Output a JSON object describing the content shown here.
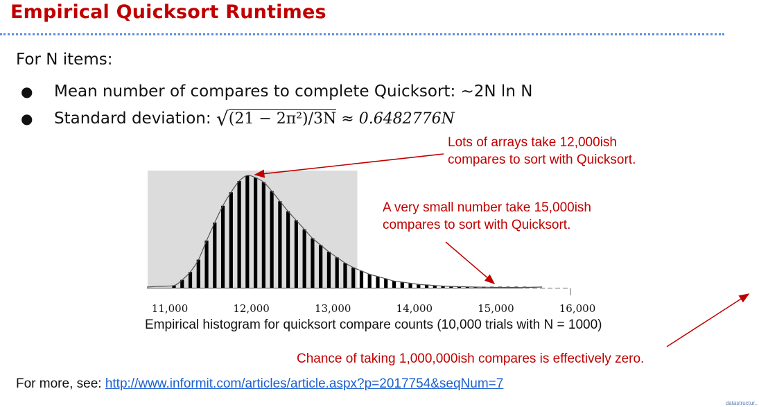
{
  "slide": {
    "title": "Empirical Quicksort Runtimes",
    "intro": "For N items:",
    "bullets": [
      "Mean number of compares to complete Quicksort: ~2N ln N",
      "Standard deviation: "
    ],
    "std_formula_radicand": "(21 − 2π²)/3N",
    "std_formula_approx": " ≈ 0.6482776N",
    "notes": {
      "n12000_line1": "Lots of arrays take 12,000ish",
      "n12000_line2": "compares to sort with Quicksort.",
      "n15000_line1": "A very small number take 15,000ish",
      "n15000_line2": "compares to sort with Quicksort.",
      "million": "Chance of taking 1,000,000ish compares is effectively zero."
    },
    "caption": "Empirical histogram for quicksort compare counts (10,000 trials with N = 1000)",
    "more_label": "For more, see: ",
    "more_url": "http://www.informit.com/articles/article.aspx?p=2017754&seqNum=7",
    "corner_brand": "datastructur..",
    "colors": {
      "title": "#c00000",
      "note": "#c00000",
      "link": "#1a5fd0",
      "rule": "#5b8ed6",
      "shade": "#dcdcdc"
    }
  },
  "chart_data": {
    "type": "bar",
    "title": "",
    "xlabel": "",
    "ylabel": "",
    "x_ticks": [
      "11,000",
      "12,000",
      "13,000",
      "14,000",
      "15,000",
      "16,000"
    ],
    "xlim": [
      10800,
      16300
    ],
    "bin_width": 100,
    "bins_x": [
      11000,
      11100,
      11200,
      11300,
      11400,
      11500,
      11600,
      11700,
      11800,
      11900,
      12000,
      12100,
      12200,
      12300,
      12400,
      12500,
      12600,
      12700,
      12800,
      12900,
      13000,
      13100,
      13200,
      13300,
      13400,
      13500,
      13600,
      13700,
      13800,
      13900,
      14000,
      14100,
      14200,
      14300,
      14400,
      14500,
      14600,
      14700,
      14800,
      14900,
      15000,
      15100,
      15200,
      15300
    ],
    "relative_frequency": [
      0.02,
      0.07,
      0.14,
      0.25,
      0.42,
      0.58,
      0.73,
      0.85,
      0.95,
      1.0,
      0.98,
      0.94,
      0.86,
      0.77,
      0.68,
      0.6,
      0.52,
      0.44,
      0.38,
      0.32,
      0.27,
      0.22,
      0.18,
      0.15,
      0.12,
      0.1,
      0.08,
      0.06,
      0.05,
      0.04,
      0.03,
      0.025,
      0.02,
      0.015,
      0.012,
      0.01,
      0.008,
      0.006,
      0.005,
      0.004,
      0.003,
      0.003,
      0.002,
      0.002
    ],
    "shaded_range": [
      11000,
      13300
    ],
    "grid": false,
    "legend": "none"
  }
}
